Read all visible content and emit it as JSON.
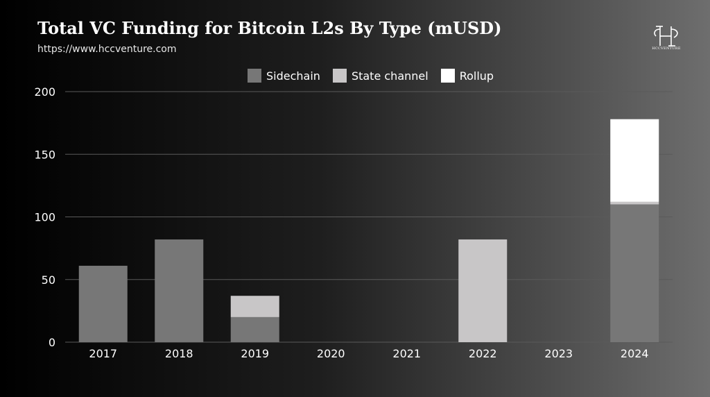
{
  "header": {
    "title": "Total VC Funding for Bitcoin L2s By Type (mUSD)",
    "url": "https://www.hccventure.com",
    "logo_text": "HCCVENTURE"
  },
  "colors": {
    "sidechain": "#777777",
    "state_channel": "#c8c6c7",
    "rollup": "#ffffff",
    "grid": "#5a5a5a",
    "text": "#ffffff"
  },
  "chart_data": {
    "type": "bar",
    "stacked": true,
    "title": "Total VC Funding for Bitcoin L2s By Type (mUSD)",
    "xlabel": "",
    "ylabel": "",
    "categories": [
      "2017",
      "2018",
      "2019",
      "2020",
      "2021",
      "2022",
      "2023",
      "2024"
    ],
    "series": [
      {
        "name": "Sidechain",
        "values": [
          61,
          82,
          20,
          0,
          0,
          0,
          0,
          110
        ]
      },
      {
        "name": "State channel",
        "values": [
          0,
          0,
          17,
          0,
          0,
          82,
          0,
          2
        ]
      },
      {
        "name": "Rollup",
        "values": [
          0,
          0,
          0,
          0,
          0,
          0,
          0,
          66
        ]
      }
    ],
    "ylim": [
      0,
      200
    ],
    "yticks": [
      0,
      50,
      100,
      150,
      200
    ],
    "grid": true,
    "legend_position": "top-center"
  }
}
